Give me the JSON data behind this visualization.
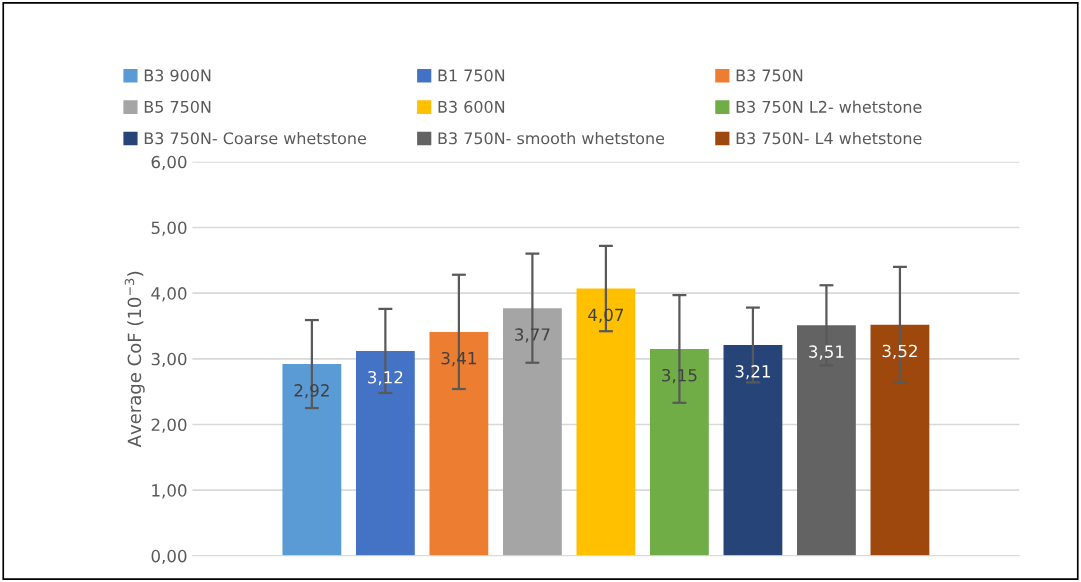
{
  "chart_data": {
    "type": "bar",
    "ylabel": "Average CoF (10$^{−3}$)",
    "categories": [
      null
    ],
    "series": [
      {
        "name": "B3 900N",
        "color": "#5b9bd5",
        "values": [
          2.92
        ],
        "errors": [
          0.67
        ],
        "value_labels": [
          "2,92"
        ]
      },
      {
        "name": "B1 750N",
        "color": "#4472c4",
        "values": [
          3.12
        ],
        "errors": [
          0.64
        ],
        "value_labels": [
          "3,12"
        ]
      },
      {
        "name": "B3 750N",
        "color": "#ed7d31",
        "values": [
          3.41
        ],
        "errors": [
          0.87
        ],
        "value_labels": [
          "3,41"
        ]
      },
      {
        "name": "B5 750N",
        "color": "#a5a5a5",
        "values": [
          3.77
        ],
        "errors": [
          0.83
        ],
        "value_labels": [
          "3,77"
        ]
      },
      {
        "name": "B3 600N",
        "color": "#ffc000",
        "values": [
          4.07
        ],
        "errors": [
          0.65
        ],
        "value_labels": [
          "4,07"
        ]
      },
      {
        "name": "B3 750N L2- whetstone",
        "color": "#70ad47",
        "values": [
          3.15
        ],
        "errors": [
          0.82
        ],
        "value_labels": [
          "3,15"
        ]
      },
      {
        "name": "B3 750N- Coarse whetstone",
        "color": "#264478",
        "values": [
          3.21
        ],
        "errors": [
          0.57
        ],
        "value_labels": [
          "3,21"
        ]
      },
      {
        "name": "B3 750N- smooth whetstone",
        "color": "#636363",
        "values": [
          3.51
        ],
        "errors": [
          0.61
        ],
        "value_labels": [
          "3,51"
        ]
      },
      {
        "name": "B3 750N- L4 whetstone",
        "color": "#9e480e",
        "values": [
          3.52
        ],
        "errors": [
          0.88
        ],
        "value_labels": [
          "3,52"
        ]
      }
    ],
    "ylim": [
      0,
      6
    ],
    "yticks": [
      {
        "value": 0,
        "label": "0,00"
      },
      {
        "value": 1,
        "label": "1,00"
      },
      {
        "value": 2,
        "label": "2,00"
      },
      {
        "value": 3,
        "label": "3,00"
      },
      {
        "value": 4,
        "label": "4,00"
      },
      {
        "value": 5,
        "label": "5,00"
      },
      {
        "value": 6,
        "label": "6,00"
      }
    ],
    "grid": "y",
    "legend": "top"
  }
}
